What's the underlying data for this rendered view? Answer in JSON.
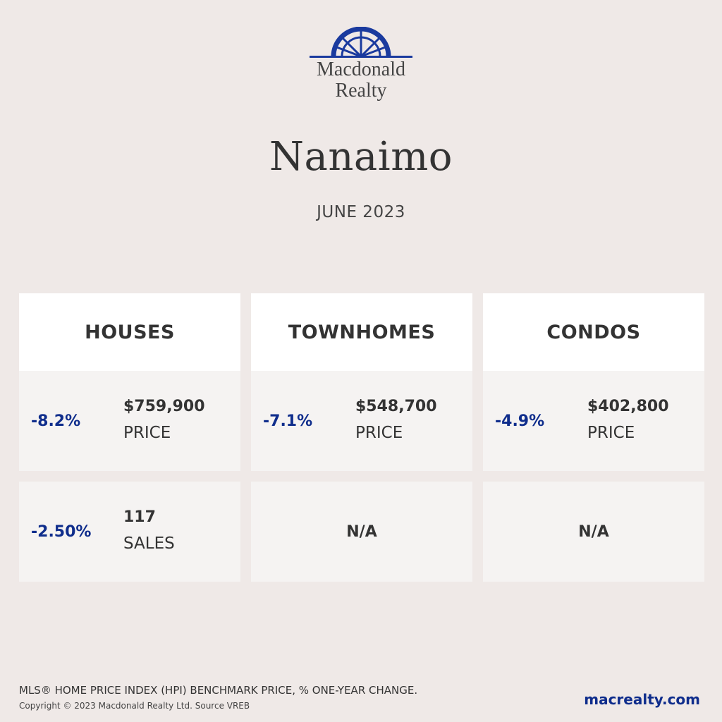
{
  "brand": {
    "line1": "Macdonald",
    "line2": "Realty",
    "logo_icon": "arch-sunburst-icon",
    "color": "#1a3a9e"
  },
  "city": "Nanaimo",
  "period": "JUNE 2023",
  "columns": [
    {
      "title": "HOUSES",
      "price": {
        "change": "-8.2%",
        "value": "$759,900",
        "label": "PRICE"
      },
      "sales": {
        "change": "-2.50%",
        "value": "117",
        "label": "SALES"
      }
    },
    {
      "title": "TOWNHOMES",
      "price": {
        "change": "-7.1%",
        "value": "$548,700",
        "label": "PRICE"
      },
      "sales": {
        "na": "N/A"
      }
    },
    {
      "title": "CONDOS",
      "price": {
        "change": "-4.9%",
        "value": "$402,800",
        "label": "PRICE"
      },
      "sales": {
        "na": "N/A"
      }
    }
  ],
  "footer": {
    "note": "MLS® HOME PRICE INDEX (HPI) BENCHMARK PRICE, % ONE-YEAR CHANGE.",
    "copyright": "Copyright © 2023 Macdonald Realty Ltd. Source VREB",
    "website": "macrealty.com"
  },
  "colors": {
    "background": "#efe9e7",
    "accent": "#0f2d8c",
    "card": "#f5f3f2",
    "header": "#ffffff"
  }
}
